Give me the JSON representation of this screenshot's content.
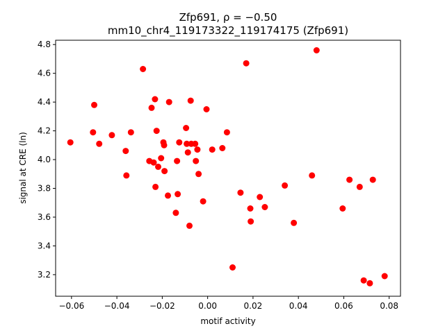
{
  "chart_data": {
    "type": "scatter",
    "title_line1": "Zfp691, ρ = −0.50",
    "title_line2": "mm10_chr4_119173322_119174175 (Zfp691)",
    "xlabel": "motif activity",
    "ylabel": "signal at CRE (ln)",
    "xlim": [
      -0.067,
      0.085
    ],
    "ylim": [
      3.05,
      4.83
    ],
    "xticks": [
      -0.06,
      -0.04,
      -0.02,
      0.0,
      0.02,
      0.04,
      0.06,
      0.08
    ],
    "xtick_labels": [
      "−0.06",
      "−0.04",
      "−0.02",
      "0.00",
      "0.02",
      "0.04",
      "0.06",
      "0.08"
    ],
    "yticks": [
      3.2,
      3.4,
      3.6,
      3.8,
      4.0,
      4.2,
      4.4,
      4.6,
      4.8
    ],
    "ytick_labels": [
      "3.2",
      "3.4",
      "3.6",
      "3.8",
      "4.0",
      "4.2",
      "4.4",
      "4.6",
      "4.8"
    ],
    "grid": false,
    "marker_color": "#ff0000",
    "points": [
      {
        "x": -0.0605,
        "y": 4.12
      },
      {
        "x": -0.0505,
        "y": 4.19
      },
      {
        "x": -0.05,
        "y": 4.38
      },
      {
        "x": -0.0478,
        "y": 4.11
      },
      {
        "x": -0.0422,
        "y": 4.17
      },
      {
        "x": -0.0361,
        "y": 4.06
      },
      {
        "x": -0.0358,
        "y": 3.89
      },
      {
        "x": -0.0338,
        "y": 4.19
      },
      {
        "x": -0.0285,
        "y": 4.63
      },
      {
        "x": -0.0257,
        "y": 3.99
      },
      {
        "x": -0.0247,
        "y": 4.36
      },
      {
        "x": -0.0238,
        "y": 3.98
      },
      {
        "x": -0.0232,
        "y": 4.42
      },
      {
        "x": -0.023,
        "y": 3.81
      },
      {
        "x": -0.0225,
        "y": 4.2
      },
      {
        "x": -0.0218,
        "y": 3.95
      },
      {
        "x": -0.0205,
        "y": 4.01
      },
      {
        "x": -0.0195,
        "y": 4.12
      },
      {
        "x": -0.0192,
        "y": 4.1
      },
      {
        "x": -0.019,
        "y": 3.92
      },
      {
        "x": -0.0175,
        "y": 3.75
      },
      {
        "x": -0.017,
        "y": 4.4
      },
      {
        "x": -0.014,
        "y": 3.63
      },
      {
        "x": -0.0135,
        "y": 3.99
      },
      {
        "x": -0.0132,
        "y": 3.76
      },
      {
        "x": -0.0125,
        "y": 4.12
      },
      {
        "x": -0.0095,
        "y": 4.22
      },
      {
        "x": -0.0092,
        "y": 4.11
      },
      {
        "x": -0.0087,
        "y": 4.05
      },
      {
        "x": -0.008,
        "y": 3.54
      },
      {
        "x": -0.0075,
        "y": 4.41
      },
      {
        "x": -0.0072,
        "y": 4.11
      },
      {
        "x": -0.0055,
        "y": 4.11
      },
      {
        "x": -0.0052,
        "y": 3.99
      },
      {
        "x": -0.0045,
        "y": 4.07
      },
      {
        "x": -0.004,
        "y": 3.9
      },
      {
        "x": -0.002,
        "y": 3.71
      },
      {
        "x": -0.0005,
        "y": 4.35
      },
      {
        "x": 0.002,
        "y": 4.07
      },
      {
        "x": 0.0065,
        "y": 4.08
      },
      {
        "x": 0.0085,
        "y": 4.19
      },
      {
        "x": 0.011,
        "y": 3.25
      },
      {
        "x": 0.0145,
        "y": 3.77
      },
      {
        "x": 0.017,
        "y": 4.67
      },
      {
        "x": 0.0188,
        "y": 3.66
      },
      {
        "x": 0.019,
        "y": 3.57
      },
      {
        "x": 0.023,
        "y": 3.74
      },
      {
        "x": 0.0252,
        "y": 3.67
      },
      {
        "x": 0.034,
        "y": 3.82
      },
      {
        "x": 0.038,
        "y": 3.56
      },
      {
        "x": 0.046,
        "y": 3.89
      },
      {
        "x": 0.048,
        "y": 4.76
      },
      {
        "x": 0.0595,
        "y": 3.66
      },
      {
        "x": 0.0625,
        "y": 3.86
      },
      {
        "x": 0.067,
        "y": 3.81
      },
      {
        "x": 0.0688,
        "y": 3.16
      },
      {
        "x": 0.0715,
        "y": 3.14
      },
      {
        "x": 0.0728,
        "y": 3.86
      },
      {
        "x": 0.078,
        "y": 3.19
      }
    ]
  }
}
